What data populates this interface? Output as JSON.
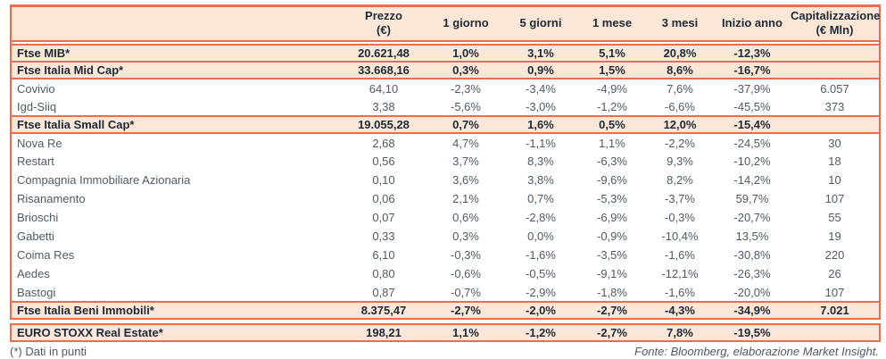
{
  "colors": {
    "accent": "#ed6b51",
    "row_bg": "#fbe7d8",
    "text_dark": "#1e2a36",
    "text_body": "#4e5a66"
  },
  "chart_data": {
    "type": "table",
    "columns": [
      {
        "id": "name",
        "lines": [
          ""
        ]
      },
      {
        "id": "prezzo",
        "lines": [
          "Prezzo",
          "(€)"
        ]
      },
      {
        "id": "g1",
        "lines": [
          "1 giorno"
        ]
      },
      {
        "id": "g5",
        "lines": [
          "5 giorni"
        ]
      },
      {
        "id": "m1",
        "lines": [
          "1 mese"
        ]
      },
      {
        "id": "m3",
        "lines": [
          "3 mesi"
        ]
      },
      {
        "id": "inizio-anno",
        "lines": [
          "Inizio anno"
        ]
      },
      {
        "id": "capitalizzazione",
        "lines": [
          "Capitalizzazione",
          "(€ Mln)"
        ]
      }
    ],
    "rows": [
      {
        "kind": "index",
        "gap_before": false,
        "cells": [
          "Ftse MIB*",
          "20.621,48",
          "1,0%",
          "3,1%",
          "5,1%",
          "20,8%",
          "-12,3%",
          ""
        ]
      },
      {
        "kind": "index",
        "gap_before": false,
        "cells": [
          "Ftse Italia Mid Cap*",
          "33.668,16",
          "0,3%",
          "0,9%",
          "1,5%",
          "8,6%",
          "-16,7%",
          ""
        ]
      },
      {
        "kind": "stock",
        "gap_before": false,
        "cells": [
          "Covivio",
          "64,10",
          "-2,3%",
          "-3,4%",
          "-4,9%",
          "7,6%",
          "-37,9%",
          "6.057"
        ]
      },
      {
        "kind": "stock",
        "gap_before": false,
        "cells": [
          "Igd-Siiq",
          "3,38",
          "-5,6%",
          "-3,0%",
          "-1,2%",
          "-6,6%",
          "-45,5%",
          "373"
        ]
      },
      {
        "kind": "index",
        "gap_before": false,
        "cells": [
          "Ftse Italia Small Cap*",
          "19.055,28",
          "0,7%",
          "1,6%",
          "0,5%",
          "12,0%",
          "-15,4%",
          ""
        ]
      },
      {
        "kind": "stock",
        "gap_before": false,
        "cells": [
          "Nova Re",
          "2,68",
          "4,7%",
          "-1,1%",
          "1,1%",
          "-2,2%",
          "-24,5%",
          "30"
        ]
      },
      {
        "kind": "stock",
        "gap_before": false,
        "cells": [
          "Restart",
          "0,56",
          "3,7%",
          "8,3%",
          "-6,3%",
          "9,3%",
          "-10,2%",
          "18"
        ]
      },
      {
        "kind": "stock",
        "gap_before": false,
        "cells": [
          "Compagnia Immobiliare Azionaria",
          "0,10",
          "3,6%",
          "3,8%",
          "-9,6%",
          "8,2%",
          "-14,2%",
          "10"
        ]
      },
      {
        "kind": "stock",
        "gap_before": false,
        "cells": [
          "Risanamento",
          "0,06",
          "2,1%",
          "0,7%",
          "-5,3%",
          "-3,7%",
          "59,7%",
          "107"
        ]
      },
      {
        "kind": "stock",
        "gap_before": false,
        "cells": [
          "Brioschi",
          "0,07",
          "0,6%",
          "-2,8%",
          "-6,9%",
          "-0,3%",
          "-20,7%",
          "55"
        ]
      },
      {
        "kind": "stock",
        "gap_before": false,
        "cells": [
          "Gabetti",
          "0,33",
          "0,3%",
          "0,0%",
          "-0,9%",
          "-10,4%",
          "13,5%",
          "19"
        ]
      },
      {
        "kind": "stock",
        "gap_before": false,
        "cells": [
          "Coima Res",
          "6,10",
          "-0,3%",
          "-1,6%",
          "-3,5%",
          "-1,6%",
          "-30,8%",
          "220"
        ]
      },
      {
        "kind": "stock",
        "gap_before": false,
        "cells": [
          "Aedes",
          "0,80",
          "-0,6%",
          "-0,5%",
          "-9,1%",
          "-12,1%",
          "-26,3%",
          "26"
        ]
      },
      {
        "kind": "stock",
        "gap_before": false,
        "cells": [
          "Bastogi",
          "0,87",
          "-0,7%",
          "-2,9%",
          "-1,8%",
          "-1,6%",
          "-20,0%",
          "107"
        ]
      },
      {
        "kind": "index",
        "gap_before": false,
        "cells": [
          "Ftse Italia Beni Immobili*",
          "8.375,47",
          "-2,7%",
          "-2,0%",
          "-2,7%",
          "-4,3%",
          "-34,9%",
          "7.021"
        ]
      },
      {
        "kind": "index",
        "gap_before": true,
        "cells": [
          "EURO STOXX Real Estate*",
          "198,21",
          "1,1%",
          "-1,2%",
          "-2,7%",
          "7,8%",
          "-19,5%",
          ""
        ]
      }
    ],
    "footnote": "(*) Dati in punti",
    "source": "Fonte: Bloomberg, elaborazione Market Insight."
  }
}
